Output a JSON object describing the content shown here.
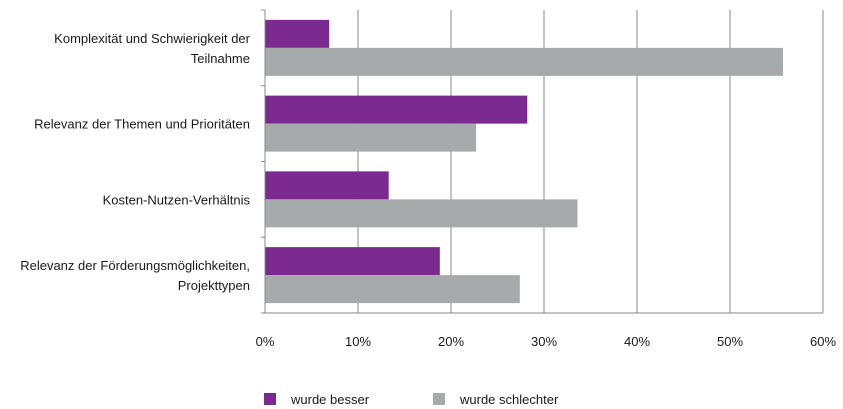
{
  "chart_data": {
    "type": "bar",
    "orientation": "horizontal",
    "categories": [
      [
        "Komplexität und Schwierigkeit der",
        "Teilnahme"
      ],
      [
        "Relevanz der Themen und Prioritäten"
      ],
      [
        "Kosten-Nutzen-Verhältnis"
      ],
      [
        "Relevanz der Förderungsmöglichkeiten,",
        "Projekttypen"
      ]
    ],
    "series": [
      {
        "name": "wurde besser",
        "color": "#7b2a8f",
        "values": [
          6.9,
          28.2,
          13.3,
          18.8
        ]
      },
      {
        "name": "wurde schlechter",
        "color": "#a7aaab",
        "values": [
          55.7,
          22.7,
          33.6,
          27.4
        ]
      }
    ],
    "xlim": [
      0,
      60
    ],
    "xticks": [
      0,
      10,
      20,
      30,
      40,
      50,
      60
    ],
    "xtick_labels": [
      "0%",
      "10%",
      "20%",
      "30%",
      "40%",
      "50%",
      "60%"
    ],
    "grid": "vertical",
    "legend_position": "bottom",
    "title": "",
    "xlabel": "",
    "ylabel": ""
  }
}
